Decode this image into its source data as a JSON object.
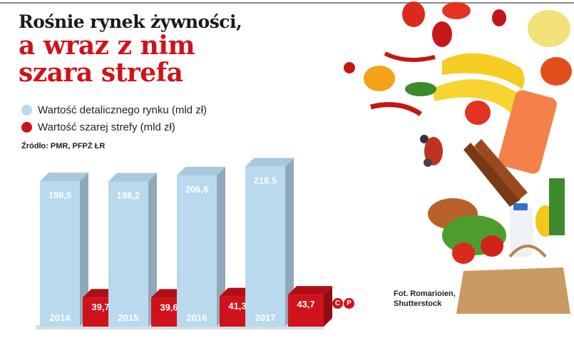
{
  "header": {
    "line1": "Rośnie rynek żywności,",
    "line2": "a wraz z nim",
    "line3": "szara strefa"
  },
  "legend": [
    {
      "label": "Wartość detalicznego rynku (mld zł)",
      "color": "#b8d9ee"
    },
    {
      "label": "Wartość  szarej strefy (mld zł)",
      "color": "#d0121b"
    }
  ],
  "source": "Źródło: PMR, PFPŻ   ŁR",
  "credit": {
    "line1": "Fot. Romarioien,",
    "line2": "Shutterstock"
  },
  "logo": [
    "C",
    "P"
  ],
  "chart_data": {
    "type": "bar",
    "categories": [
      "2014",
      "2015",
      "2016",
      "2017"
    ],
    "series": [
      {
        "name": "Wartość detalicznego rynku (mld zł)",
        "values": [
          198.5,
          198.2,
          206.6,
          218.5
        ],
        "labels": [
          "198,5",
          "198,2",
          "206,6",
          "218,5"
        ],
        "color": "#b8d9ee"
      },
      {
        "name": "Wartość  szarej strefy (mld zł)",
        "values": [
          39.7,
          39.6,
          41.3,
          43.7
        ],
        "labels": [
          "39,7",
          "39,6",
          "41,3",
          "43,7"
        ],
        "color": "#d0121b"
      }
    ],
    "legend_position": "top-left",
    "grid": false
  }
}
